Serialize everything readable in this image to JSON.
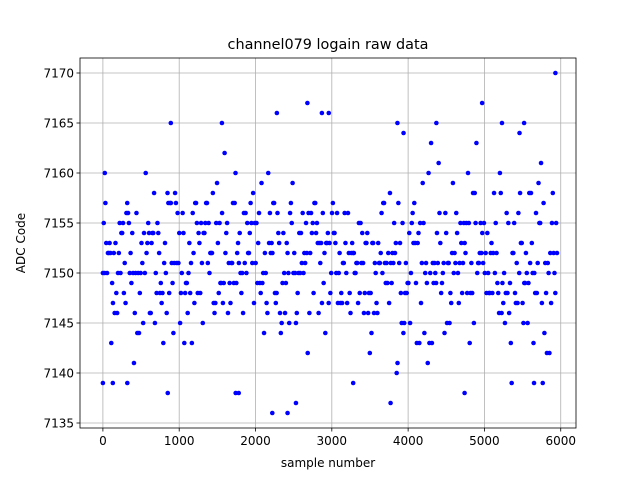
{
  "chart_data": {
    "type": "scatter",
    "title": "channel079 logain raw data",
    "xlabel": "sample number",
    "ylabel": "ADC Code",
    "xlim": [
      -300,
      6200
    ],
    "ylim": [
      7134.5,
      7171.5
    ],
    "xticks": [
      0,
      1000,
      2000,
      3000,
      4000,
      5000,
      6000
    ],
    "yticks": [
      7135,
      7140,
      7145,
      7150,
      7155,
      7160,
      7165,
      7170
    ],
    "grid": true,
    "marker_color": "#0000ff",
    "n_samples": 5952,
    "sample_step": 11,
    "center": 7151.3,
    "noise_sigma": 4.1,
    "outlier_points": [
      [
        0,
        7139
      ],
      [
        25,
        7160
      ],
      [
        130,
        7139
      ],
      [
        320,
        7139
      ],
      [
        850,
        7138
      ],
      [
        890,
        7165
      ],
      [
        1560,
        7165
      ],
      [
        1740,
        7138
      ],
      [
        1780,
        7138
      ],
      [
        2220,
        7136
      ],
      [
        2280,
        7166
      ],
      [
        2420,
        7136
      ],
      [
        2530,
        7137
      ],
      [
        2680,
        7167
      ],
      [
        2870,
        7166
      ],
      [
        2960,
        7166
      ],
      [
        3280,
        7139
      ],
      [
        3770,
        7137
      ],
      [
        3860,
        7165
      ],
      [
        3940,
        7164
      ],
      [
        4370,
        7165
      ],
      [
        4740,
        7138
      ],
      [
        4970,
        7167
      ],
      [
        5230,
        7165
      ],
      [
        5460,
        7164
      ],
      [
        5520,
        7165
      ],
      [
        5650,
        7139
      ],
      [
        5930,
        7170
      ]
    ]
  }
}
